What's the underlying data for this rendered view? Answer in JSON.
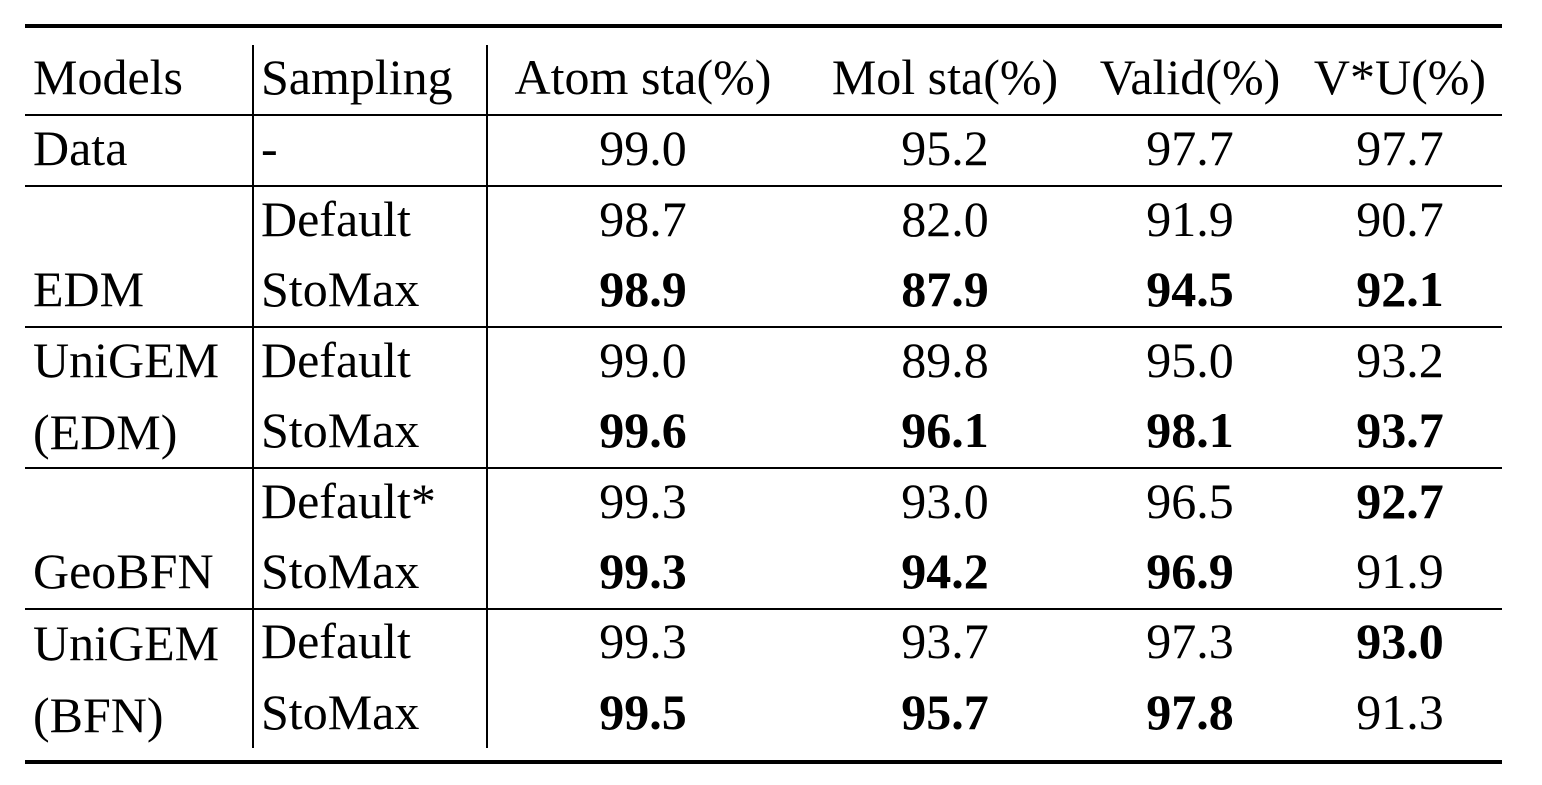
{
  "header": {
    "models": "Models",
    "sampling": "Sampling",
    "atom": "Atom sta(%)",
    "mol": "Mol sta(%)",
    "valid": "Valid(%)",
    "vu": "V*U(%)"
  },
  "rows": [
    {
      "model": "Data",
      "sampling": "-",
      "atom": "99.0",
      "mol": "95.2",
      "valid": "97.7",
      "vu": "97.7"
    },
    {
      "model": "",
      "sampling": "Default",
      "atom": "98.7",
      "mol": "82.0",
      "valid": "91.9",
      "vu": "90.7"
    },
    {
      "model": "EDM",
      "sampling": "StoMax",
      "atom": "98.9",
      "mol": "87.9",
      "valid": "94.5",
      "vu": "92.1"
    },
    {
      "model": "UniGEM",
      "sampling": "Default",
      "atom": "99.0",
      "mol": "89.8",
      "valid": "95.0",
      "vu": "93.2"
    },
    {
      "model": "(EDM)",
      "sampling": "StoMax",
      "atom": "99.6",
      "mol": "96.1",
      "valid": "98.1",
      "vu": "93.7"
    },
    {
      "model": "",
      "sampling": "Default*",
      "atom": "99.3",
      "mol": "93.0",
      "valid": "96.5",
      "vu": "92.7"
    },
    {
      "model": "GeoBFN",
      "sampling": "StoMax",
      "atom": "99.3",
      "mol": "94.2",
      "valid": "96.9",
      "vu": "91.9"
    },
    {
      "model": "UniGEM",
      "sampling": "Default",
      "atom": "99.3",
      "mol": "93.7",
      "valid": "97.3",
      "vu": "93.0"
    },
    {
      "model": "(BFN)",
      "sampling": "StoMax",
      "atom": "99.5",
      "mol": "95.7",
      "valid": "97.8",
      "vu": "91.3"
    }
  ]
}
